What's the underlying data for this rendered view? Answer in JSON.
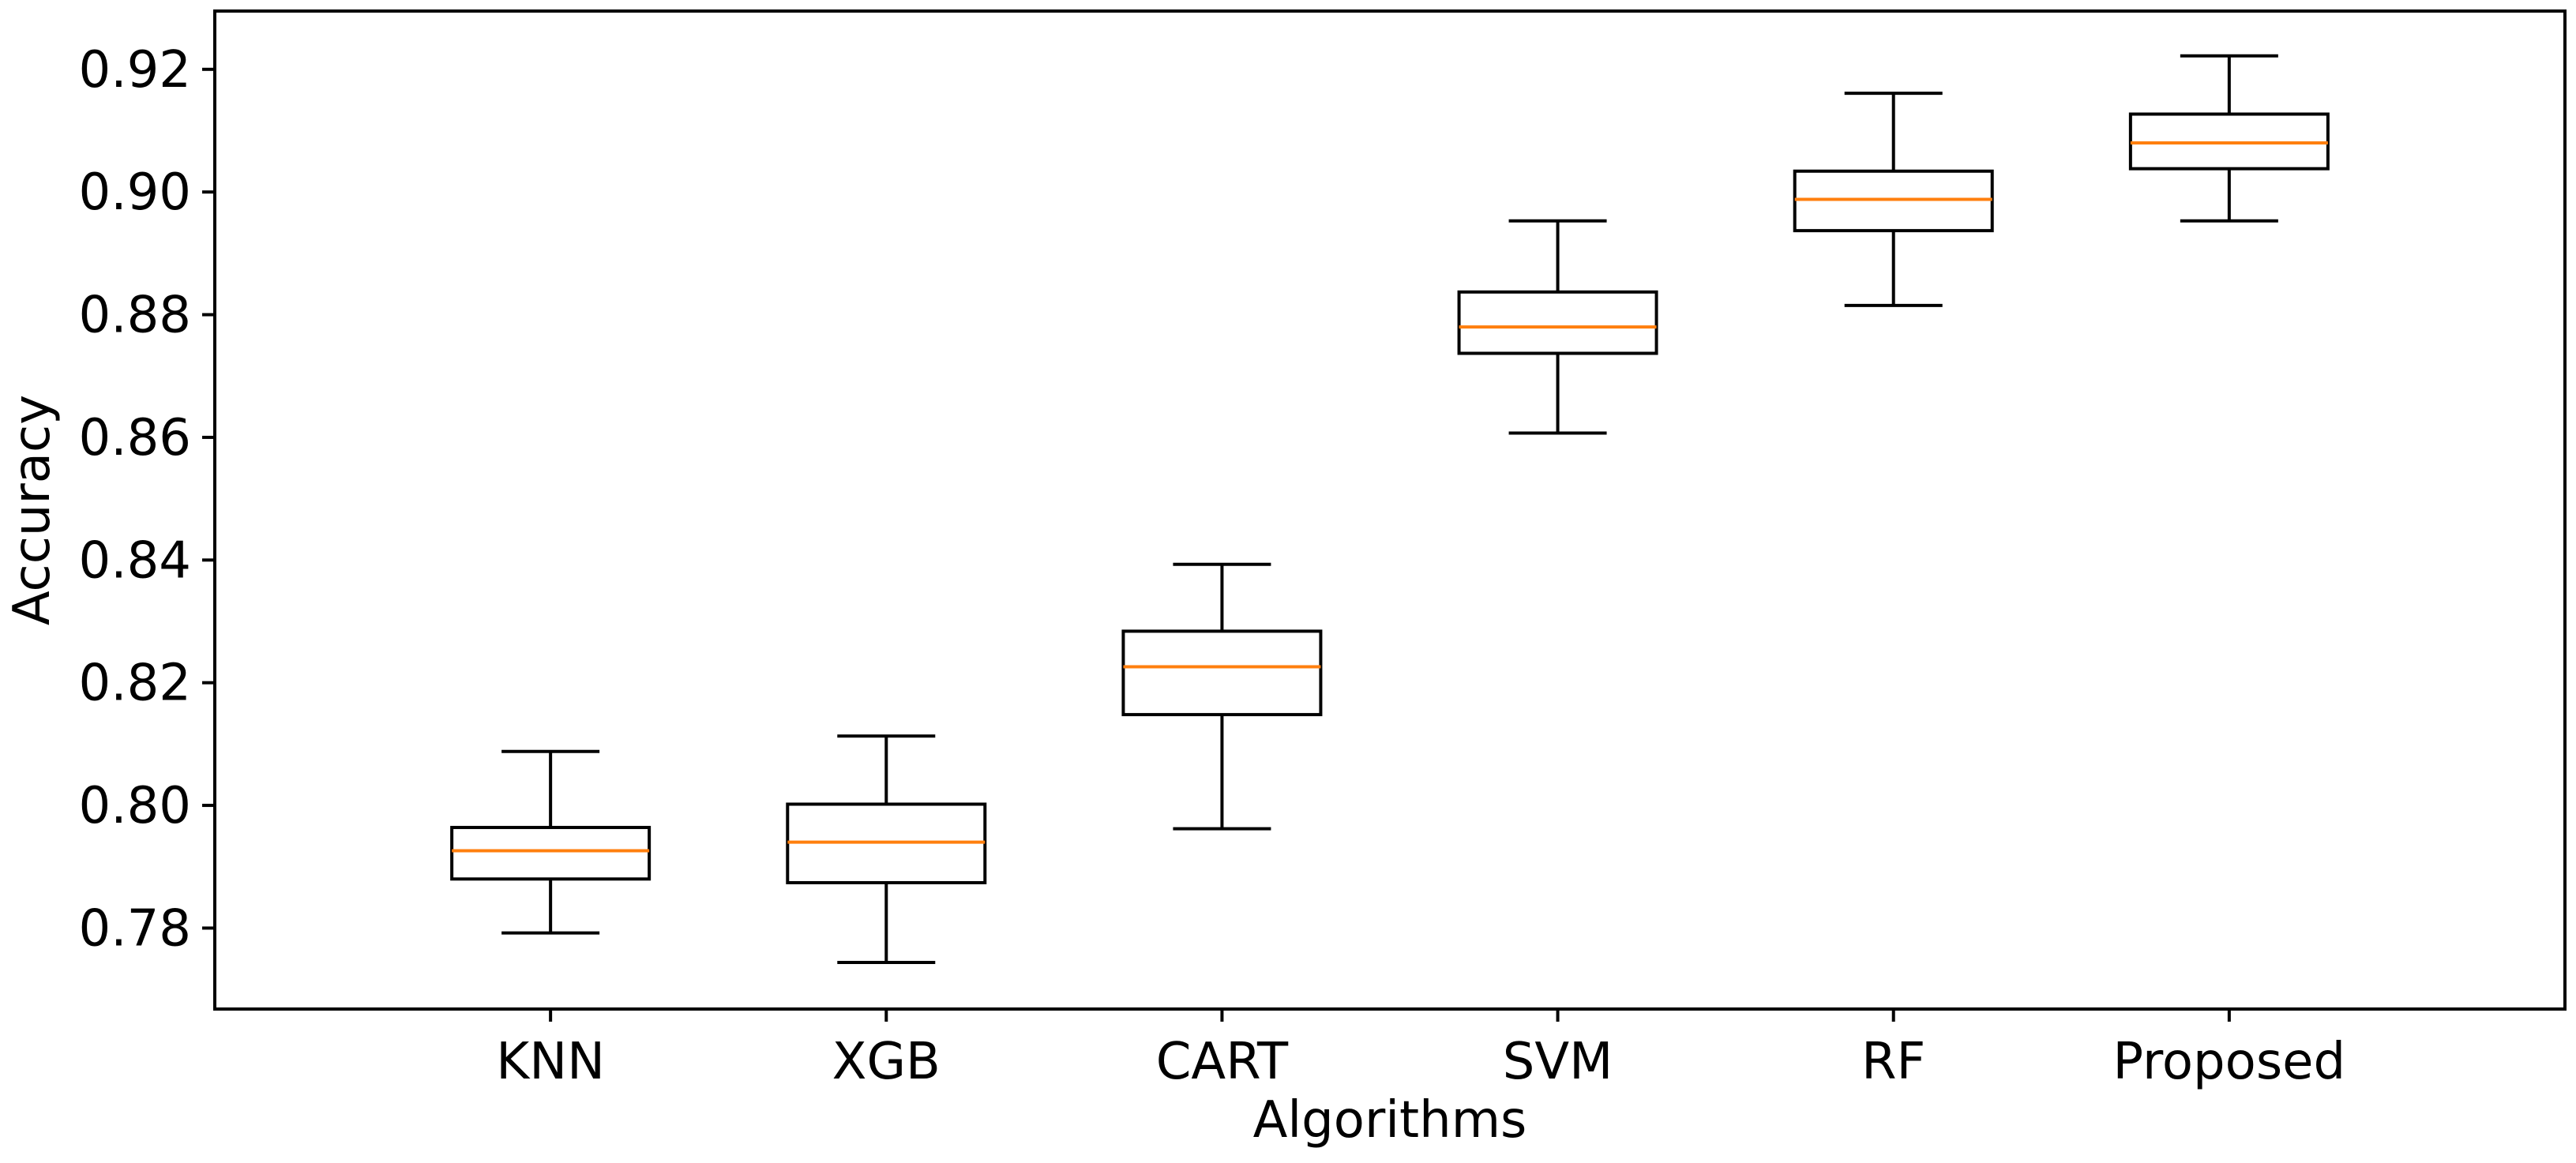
{
  "chart_data": {
    "type": "box",
    "title": "",
    "xlabel": "Algorithms",
    "ylabel": "Accuracy",
    "ylim": [
      0.7668,
      0.9295
    ],
    "yticks": [
      "0.78",
      "0.80",
      "0.82",
      "0.84",
      "0.86",
      "0.88",
      "0.90",
      "0.92"
    ],
    "ytick_values": [
      0.78,
      0.8,
      0.82,
      0.84,
      0.86,
      0.88,
      0.9,
      0.92
    ],
    "categories": [
      "KNN",
      "XGB",
      "CART",
      "SVM",
      "RF",
      "Proposed"
    ],
    "boxes": [
      {
        "name": "KNN",
        "whislo": 0.7792,
        "q1": 0.788,
        "med": 0.7926,
        "q3": 0.7964,
        "whishi": 0.8088
      },
      {
        "name": "XGB",
        "whislo": 0.7744,
        "q1": 0.7874,
        "med": 0.794,
        "q3": 0.8002,
        "whishi": 0.8113
      },
      {
        "name": "CART",
        "whislo": 0.7962,
        "q1": 0.8148,
        "med": 0.8226,
        "q3": 0.8284,
        "whishi": 0.8393
      },
      {
        "name": "SVM",
        "whislo": 0.8607,
        "q1": 0.8737,
        "med": 0.878,
        "q3": 0.8837,
        "whishi": 0.8953
      },
      {
        "name": "RF",
        "whislo": 0.8815,
        "q1": 0.8937,
        "med": 0.8988,
        "q3": 0.9034,
        "whishi": 0.9161
      },
      {
        "name": "Proposed",
        "whislo": 0.8953,
        "q1": 0.9038,
        "med": 0.908,
        "q3": 0.9127,
        "whishi": 0.9222
      }
    ],
    "colors": {
      "box": "#000000",
      "median": "#ff7f0e",
      "background": "#ffffff"
    },
    "grid": false,
    "legend": "none"
  }
}
